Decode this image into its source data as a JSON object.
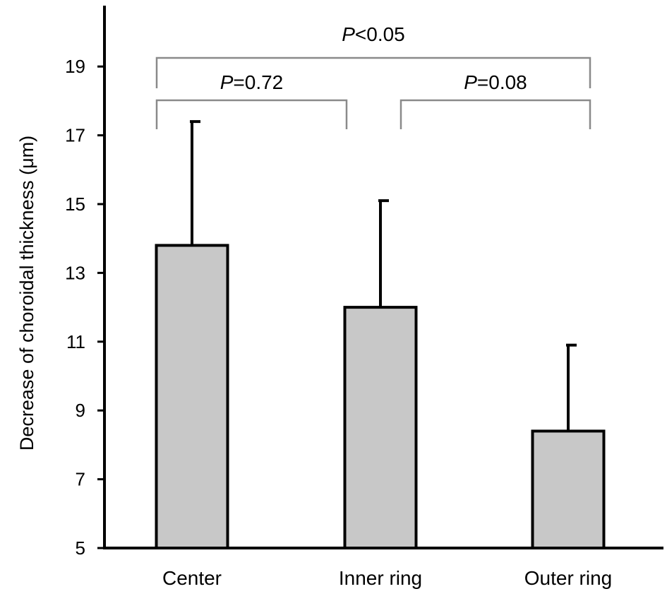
{
  "chart_data": {
    "type": "bar",
    "categories": [
      "Center",
      "Inner ring",
      "Outer ring"
    ],
    "values": [
      13.8,
      12.0,
      8.4
    ],
    "error_upper": [
      17.4,
      15.1,
      10.9
    ],
    "ylabel": "Decrease of choroidal thickness (μm)",
    "xlabel": "",
    "ylim": [
      5,
      20
    ],
    "yticks": [
      5,
      7,
      9,
      11,
      13,
      15,
      17,
      19
    ],
    "grid": false,
    "bar_color": "#c8c8c8",
    "comparisons": [
      {
        "from": "Center",
        "to": "Outer ring",
        "level": "top",
        "p_symbol": "P",
        "p_text": "<0.05"
      },
      {
        "from": "Center",
        "to": "Inner ring",
        "level": "lower",
        "p_symbol": "P",
        "p_text": "=0.72"
      },
      {
        "from": "Inner ring",
        "to": "Outer ring",
        "level": "lower",
        "p_symbol": "P",
        "p_text": "=0.08"
      }
    ]
  }
}
